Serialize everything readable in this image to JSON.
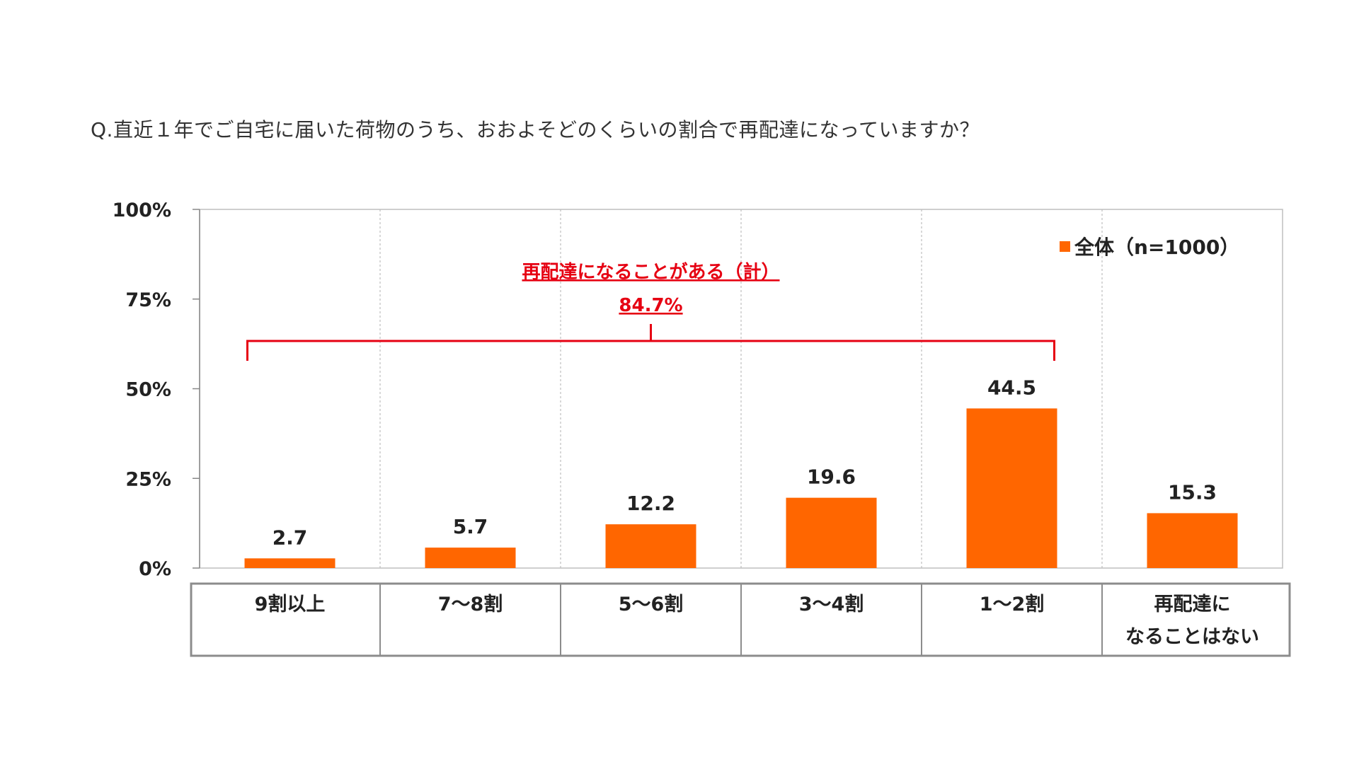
{
  "question": "Q.直近１年でご自宅に届いた荷物のうち、おおよそどのくらいの割合で再配達になっていますか？",
  "chart_data": {
    "type": "bar",
    "categories": [
      "9割以上",
      "7～8割",
      "5～6割",
      "3～4割",
      "1～2割",
      "再配達になることはない"
    ],
    "category_lines": [
      [
        "9割以上"
      ],
      [
        "7～8割"
      ],
      [
        "5～6割"
      ],
      [
        "3～4割"
      ],
      [
        "1～2割"
      ],
      [
        "再配達に",
        "なることはない"
      ]
    ],
    "series": [
      {
        "name": "全体（n=1000）",
        "values": [
          2.7,
          5.7,
          12.2,
          19.6,
          44.5,
          15.3
        ],
        "labels": [
          "2.7",
          "5.7",
          "12.2",
          "19.6",
          "44.5",
          "15.3"
        ]
      }
    ],
    "ylim": [
      0,
      100
    ],
    "yticks": [
      0,
      25,
      50,
      75,
      100
    ],
    "ytick_labels": [
      "0%",
      "25%",
      "50%",
      "75%",
      "100%"
    ],
    "grid": "vertical-dashed",
    "legend_placement": "top-right",
    "bar_color": "#ff6600",
    "annotation": {
      "label": "再配達になることがある（計）",
      "value": "84.7%",
      "color": "#e60012",
      "spans_categories": [
        0,
        4
      ]
    }
  }
}
